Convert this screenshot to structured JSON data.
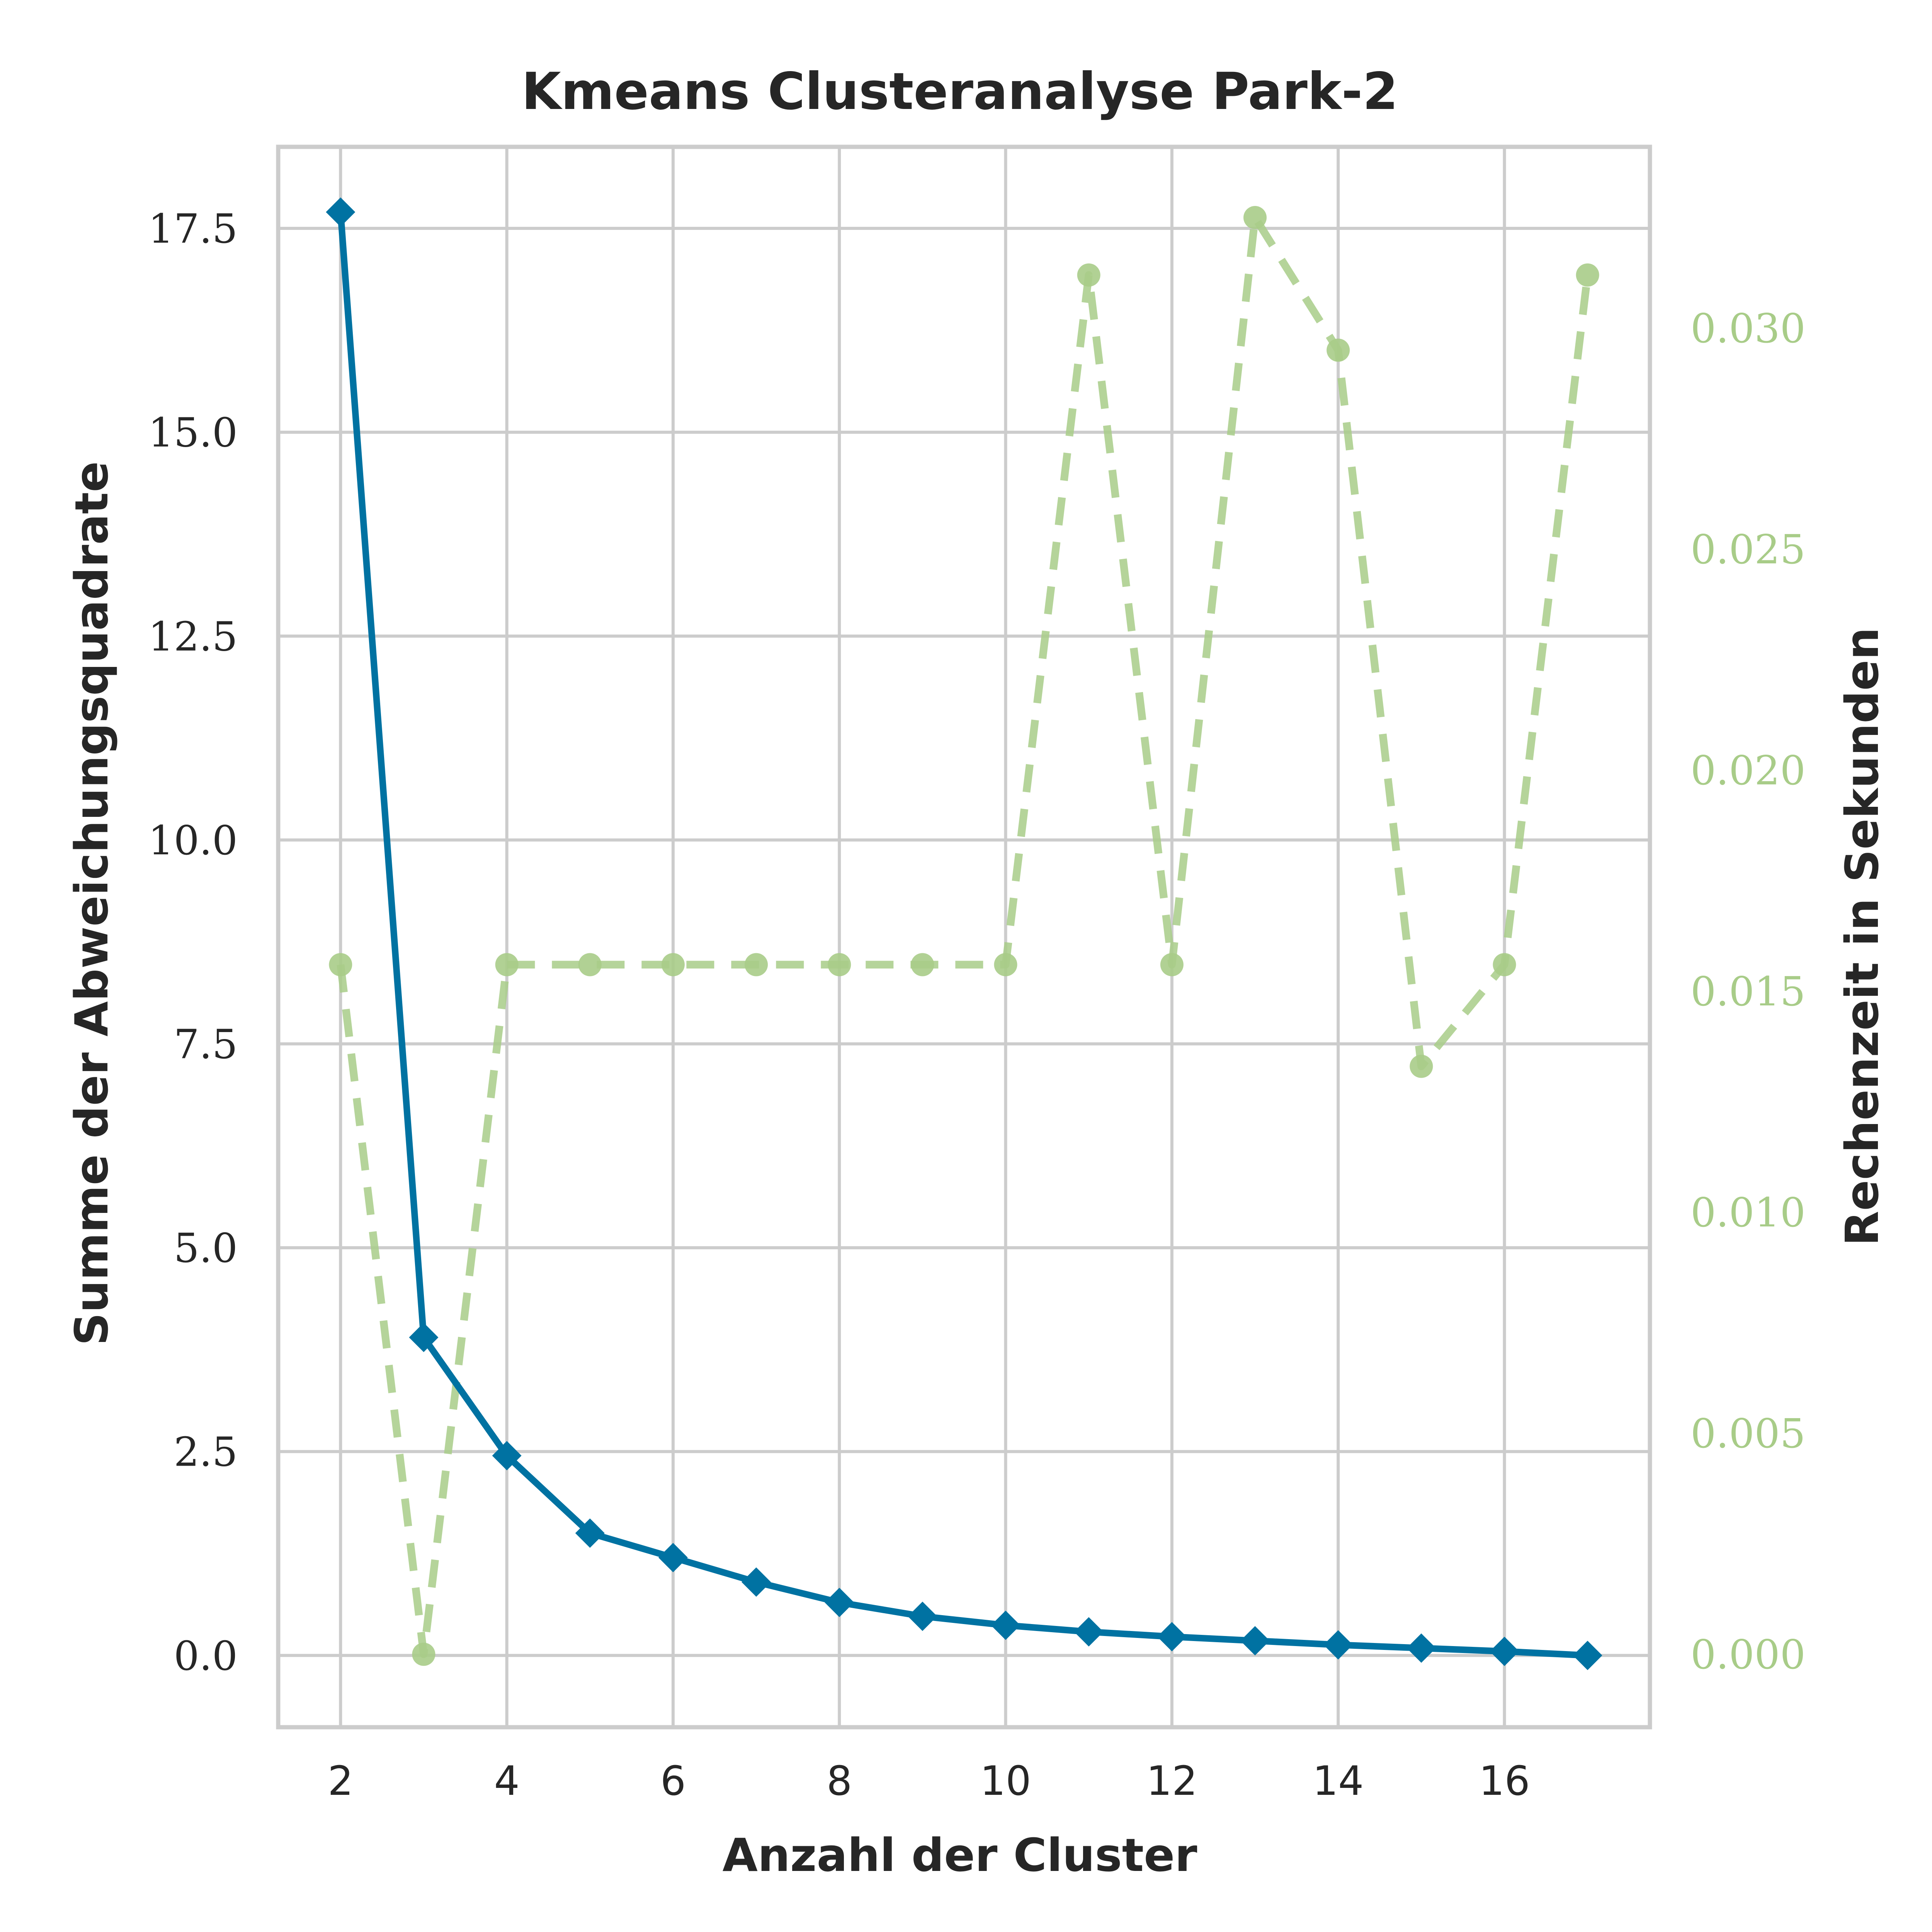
{
  "chart_data": {
    "type": "line",
    "title": "Kmeans Clusteranalyse Park-2",
    "xlabel": "Anzahl der Cluster",
    "ylabel": "Summe der Abweichungsquadrate",
    "y2label": "Rechenzeit in Sekunden",
    "x": [
      2,
      3,
      4,
      5,
      6,
      7,
      8,
      9,
      10,
      11,
      12,
      13,
      14,
      15,
      16,
      17
    ],
    "xlim": [
      1.25,
      17.75
    ],
    "ylim": [
      -0.88,
      18.5
    ],
    "y2lim": [
      -0.00165,
      0.0341
    ],
    "xticks": [
      2,
      4,
      6,
      8,
      10,
      12,
      14,
      16
    ],
    "xtick_labels": [
      "2",
      "4",
      "6",
      "8",
      "10",
      "12",
      "14",
      "16"
    ],
    "yticks": [
      0,
      2.5,
      5,
      7.5,
      10,
      12.5,
      15,
      17.5
    ],
    "ytick_labels": [
      "0.0",
      "2.5",
      "5.0",
      "7.5",
      "10.0",
      "12.5",
      "15.0",
      "17.5"
    ],
    "y2ticks": [
      0,
      0.005,
      0.01,
      0.015,
      0.02,
      0.025,
      0.03
    ],
    "y2tick_labels": [
      "0.000",
      "0.005",
      "0.010",
      "0.015",
      "0.020",
      "0.025",
      "0.030"
    ],
    "grid": true,
    "series": [
      {
        "axis": "left",
        "style": "solid",
        "marker": "diamond",
        "color": "#0072a2",
        "values": [
          17.7,
          3.9,
          2.45,
          1.5,
          1.2,
          0.9,
          0.65,
          0.48,
          0.37,
          0.29,
          0.23,
          0.18,
          0.13,
          0.09,
          0.05,
          0.0
        ]
      },
      {
        "axis": "right",
        "style": "dashed",
        "marker": "circle",
        "color": "#a8cc88",
        "values": [
          0.0156,
          0.0,
          0.0156,
          0.0156,
          0.0156,
          0.0156,
          0.0156,
          0.0156,
          0.0156,
          0.0312,
          0.0156,
          0.0325,
          0.0295,
          0.0133,
          0.0156,
          0.0312
        ]
      }
    ]
  }
}
